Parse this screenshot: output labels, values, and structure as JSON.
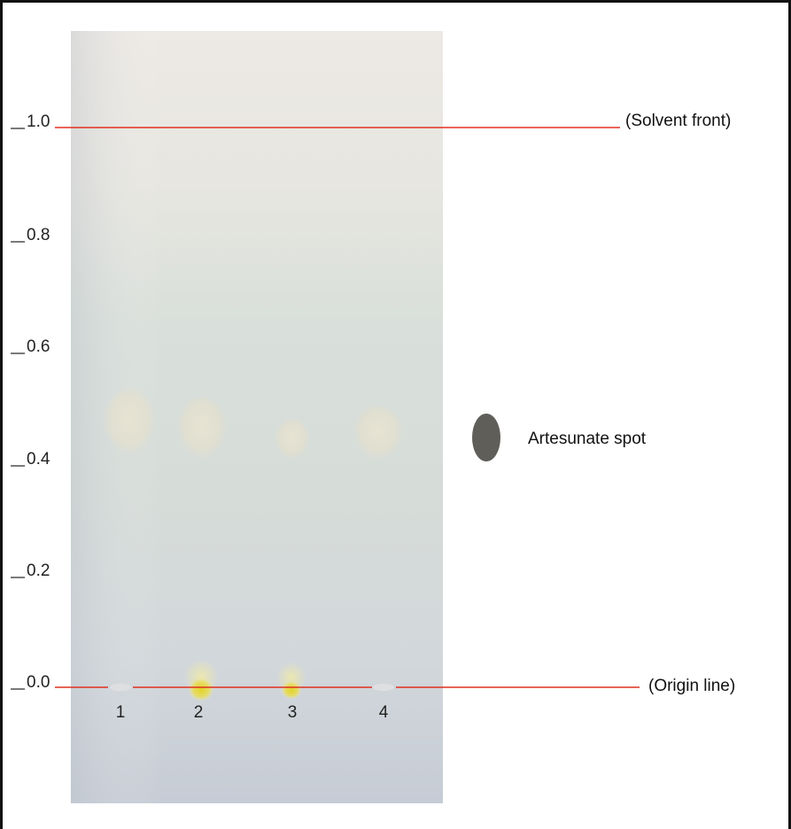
{
  "scale_ticks": [
    "1.0",
    "0.8",
    "0.6",
    "0.4",
    "0.2",
    "0.0"
  ],
  "solvent_front_label": "(Solvent front)",
  "origin_line_label": "(Origin line)",
  "legend_label": "Artesunate spot",
  "lanes": [
    "1",
    "2",
    "3",
    "4"
  ],
  "colors": {
    "reference_line": "#e0301e",
    "legend_spot": "#5f5e59",
    "plate_top": "#ece8e2",
    "plate_bottom": "#c9cfd6",
    "yellow_spot": "#e6dc30"
  }
}
